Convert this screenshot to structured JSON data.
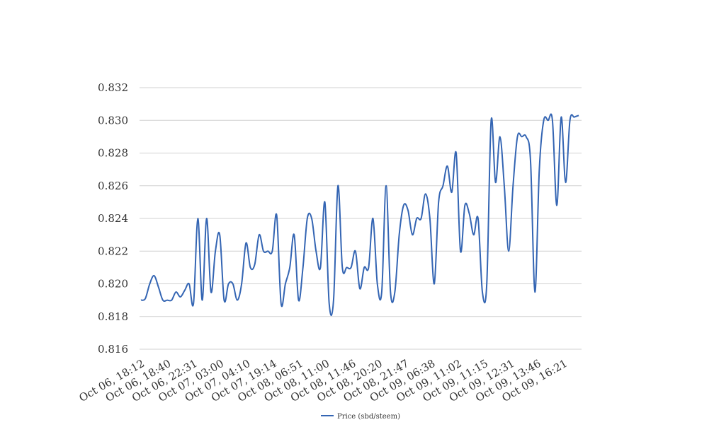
{
  "chart_data": {
    "type": "line",
    "title": "",
    "xlabel": "",
    "ylabel": "",
    "ylim": [
      0.816,
      0.832
    ],
    "yticks": [
      "0.816",
      "0.818",
      "0.820",
      "0.822",
      "0.824",
      "0.826",
      "0.828",
      "0.830",
      "0.832"
    ],
    "grid": true,
    "legend_position": "bottom-center",
    "x_tick_labels": [
      "Oct 06, 18:12",
      "Oct 06, 18:40",
      "Oct 06, 22:31",
      "Oct 07, 03:00",
      "Oct 07, 04:10",
      "Oct 07, 19:14",
      "Oct 08, 06:51",
      "Oct 08, 11:00",
      "Oct 08, 11:46",
      "Oct 08, 20:20",
      "Oct 08, 21:47",
      "Oct 09, 06:38",
      "Oct 09, 11:02",
      "Oct 09, 11:15",
      "Oct 09, 12:31",
      "Oct 09, 13:46",
      "Oct 09, 16:21"
    ],
    "series": [
      {
        "name": "Price (sbd/steem)",
        "color": "#3465b3",
        "values": [
          0.819,
          0.8191,
          0.82,
          0.8205,
          0.8198,
          0.819,
          0.819,
          0.819,
          0.8195,
          0.8192,
          0.8196,
          0.82,
          0.8188,
          0.824,
          0.819,
          0.824,
          0.8195,
          0.822,
          0.823,
          0.819,
          0.82,
          0.82,
          0.819,
          0.82,
          0.8225,
          0.821,
          0.8212,
          0.823,
          0.822,
          0.822,
          0.822,
          0.8242,
          0.8188,
          0.82,
          0.821,
          0.823,
          0.819,
          0.821,
          0.824,
          0.824,
          0.822,
          0.821,
          0.825,
          0.8188,
          0.819,
          0.826,
          0.821,
          0.821,
          0.821,
          0.822,
          0.8197,
          0.821,
          0.821,
          0.824,
          0.82,
          0.8195,
          0.826,
          0.8195,
          0.8195,
          0.823,
          0.8248,
          0.8245,
          0.823,
          0.824,
          0.824,
          0.8255,
          0.824,
          0.82,
          0.825,
          0.826,
          0.8272,
          0.8256,
          0.828,
          0.822,
          0.8248,
          0.8243,
          0.823,
          0.824,
          0.8195,
          0.82,
          0.83,
          0.8262,
          0.829,
          0.826,
          0.822,
          0.826,
          0.829,
          0.829,
          0.829,
          0.8275,
          0.8195,
          0.827,
          0.83,
          0.83,
          0.83,
          0.8248,
          0.8302,
          0.8262,
          0.83,
          0.8302,
          0.8303
        ]
      }
    ]
  }
}
